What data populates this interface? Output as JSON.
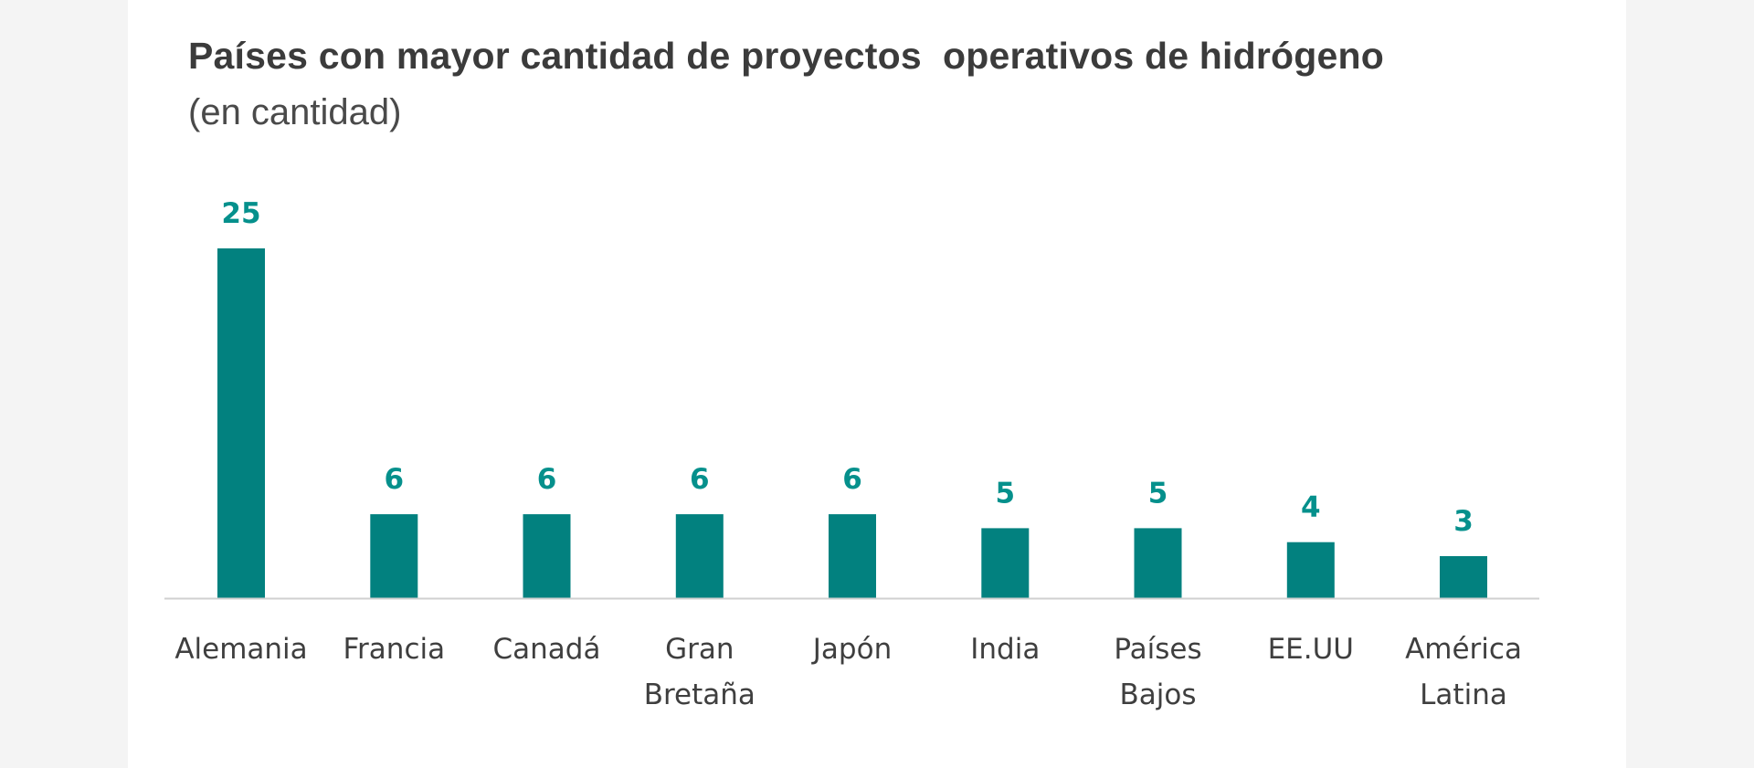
{
  "chart_data": {
    "type": "bar",
    "title": "Países con mayor cantidad de proyectos  operativos de hidrógeno",
    "subtitle": "(en cantidad)",
    "categories": [
      [
        "Alemania"
      ],
      [
        "Francia"
      ],
      [
        "Canadá"
      ],
      [
        "Gran",
        "Bretaña"
      ],
      [
        "Japón"
      ],
      [
        "India"
      ],
      [
        "Países",
        "Bajos"
      ],
      [
        "EE.UU"
      ],
      [
        "América",
        "Latina"
      ]
    ],
    "values": [
      25,
      6,
      6,
      6,
      6,
      5,
      5,
      4,
      3
    ],
    "value_labels": [
      "25",
      "6",
      "6",
      "6",
      "6",
      "5",
      "5",
      "4",
      "3"
    ],
    "xlabel": "",
    "ylabel": "",
    "ylim": [
      0,
      25
    ],
    "grid": false,
    "legend": "none"
  },
  "colors": {
    "bar": "#02817f",
    "value_label": "#05908c",
    "axis": "#d0d0d0",
    "title": "#3b3b3b",
    "background": "#ffffff",
    "page": "#f4f4f4"
  }
}
